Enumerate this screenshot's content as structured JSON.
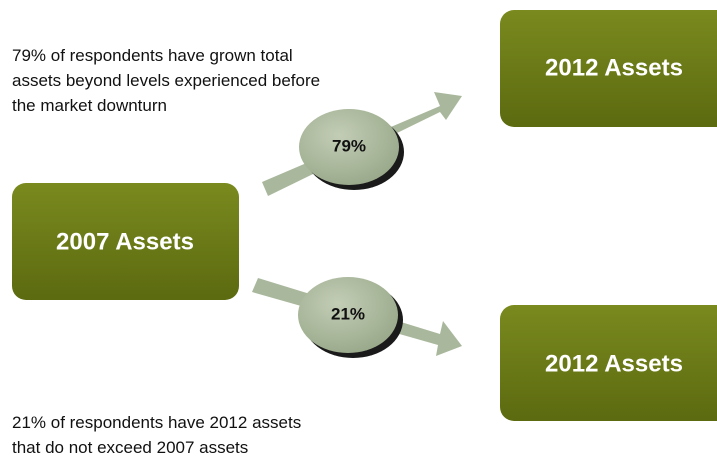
{
  "notes": [
    "79% of respondents have grown  total",
    "assets beyond levels experienced before",
    "the market downturn",
    "21% of respondents have 2012 assets",
    "that do not exceed 2007 assets"
  ],
  "nodes": [
    {
      "label": "2007 Assets"
    },
    {
      "label": "2012 Assets"
    },
    {
      "label": "2012 Assets"
    }
  ],
  "edges": [
    {
      "label": "79%"
    },
    {
      "label": "21%"
    }
  ]
}
